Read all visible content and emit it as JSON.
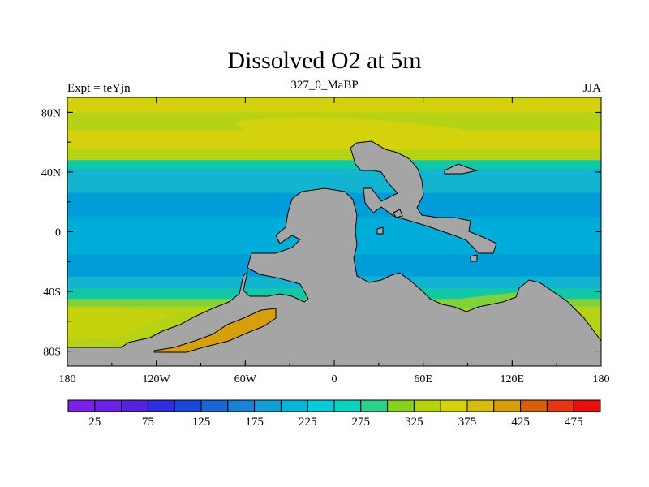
{
  "title": "Dissolved O2 at 5m",
  "subtitle": "327_0_MaBP",
  "left_label": "Expt = teYjn",
  "right_label": "JJA",
  "map": {
    "x_ticks": [
      "180",
      "120W",
      "60W",
      "0",
      "60E",
      "120E",
      "180"
    ],
    "y_ticks": [
      "80N",
      "40N",
      "0",
      "40S",
      "80S"
    ],
    "land_color": "#a5a5a5",
    "bands": [
      {
        "lat": 90,
        "color": "#d3d20c"
      },
      {
        "lat": 80,
        "color": "#b5d214"
      },
      {
        "lat": 68,
        "color": "#d3d20c"
      },
      {
        "lat": 55,
        "color": "#b5d214"
      },
      {
        "lat": 48,
        "color": "#12c7a6"
      },
      {
        "lat": 42,
        "color": "#12b4d0"
      },
      {
        "lat": 26,
        "color": "#009dd8"
      },
      {
        "lat": 10,
        "color": "#00acd8"
      },
      {
        "lat": -15,
        "color": "#009dd8"
      },
      {
        "lat": -30,
        "color": "#12b4d0"
      },
      {
        "lat": -38,
        "color": "#12c7a6"
      },
      {
        "lat": -45,
        "color": "#7fd23a"
      },
      {
        "lat": -50,
        "color": "#b5d214"
      },
      {
        "lat": -90,
        "color": "#b5d214"
      }
    ]
  },
  "colorbar": {
    "colors": [
      "#7a22e6",
      "#6b22e6",
      "#5424dc",
      "#2e2ee0",
      "#1a47d8",
      "#1a66d6",
      "#1a82d6",
      "#129fd6",
      "#0ab4d9",
      "#0ac9d9",
      "#0ad2bf",
      "#2cd287",
      "#87d21f",
      "#b5d20d",
      "#d3d20d",
      "#d8bc0d",
      "#d89f0d",
      "#d85d0d",
      "#e63418",
      "#e61010"
    ],
    "labels": [
      "25",
      "75",
      "125",
      "175",
      "225",
      "275",
      "325",
      "375",
      "425",
      "475"
    ]
  }
}
